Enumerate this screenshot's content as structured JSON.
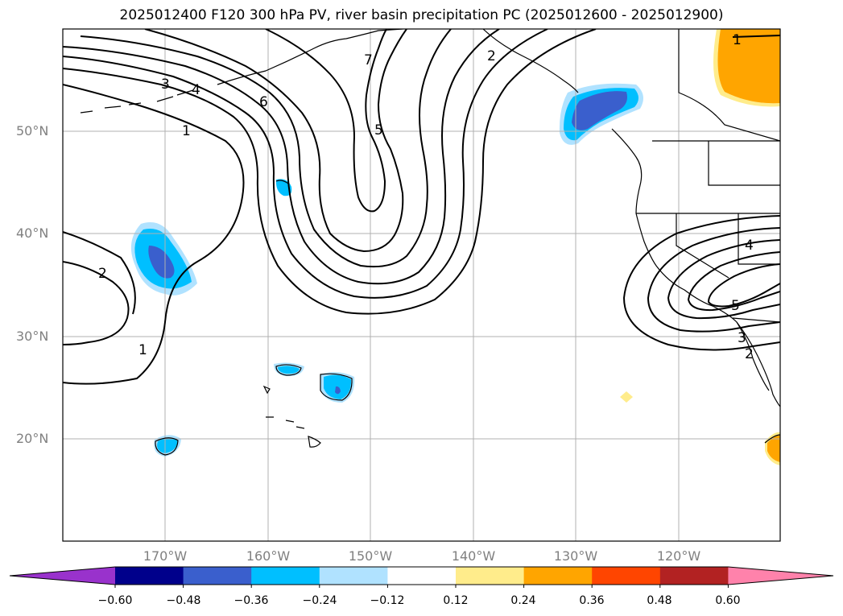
{
  "title": "2025012400 F120 300 hPa PV, river basin precipitation PC (2025012600 - 2025012900)",
  "latitude_labels": [
    "50°N",
    "40°N",
    "30°N",
    "20°N"
  ],
  "longitude_labels": [
    "170°W",
    "160°W",
    "150°W",
    "140°W",
    "130°W",
    "120°W"
  ],
  "contour_labels": [
    "1",
    "2",
    "3",
    "4",
    "5",
    "6",
    "7"
  ],
  "colorbar": {
    "ticks": [
      "−0.60",
      "−0.48",
      "−0.36",
      "−0.24",
      "−0.12",
      "0.12",
      "0.24",
      "0.36",
      "0.48",
      "0.60"
    ],
    "colors": [
      "#9932cc",
      "#00008b",
      "#3a5fcd",
      "#00bfff",
      "#b0e2ff",
      "#ffffff",
      "#ffec8b",
      "#ffa500",
      "#ff4500",
      "#b22222",
      "#ff82ab"
    ]
  },
  "precip_colors": {
    "neg_light": "#b0e2ff",
    "neg_mid": "#00bfff",
    "neg_strong": "#3a5fcd",
    "pos_light": "#ffec8b",
    "pos_mid": "#ffa500"
  }
}
